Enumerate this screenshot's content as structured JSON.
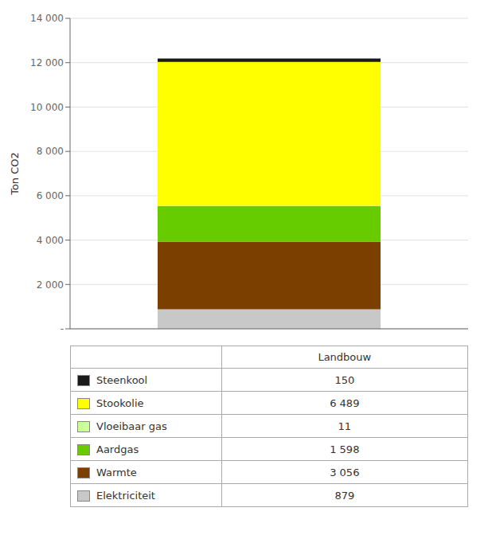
{
  "chart_data": {
    "type": "bar",
    "categories": [
      "Landbouw"
    ],
    "series": [
      {
        "name": "Steenkool",
        "color": "#1a1a1a",
        "values": [
          150
        ],
        "value_labels": [
          "150"
        ]
      },
      {
        "name": "Stookolie",
        "color": "#ffff00",
        "values": [
          6489
        ],
        "value_labels": [
          "6 489"
        ]
      },
      {
        "name": "Vloeibaar gas",
        "color": "#ccff99",
        "values": [
          11
        ],
        "value_labels": [
          "11"
        ]
      },
      {
        "name": "Aardgas",
        "color": "#66cc00",
        "values": [
          1598
        ],
        "value_labels": [
          "1 598"
        ]
      },
      {
        "name": "Warmte",
        "color": "#7b3f00",
        "values": [
          3056
        ],
        "value_labels": [
          "3 056"
        ]
      },
      {
        "name": "Elektriciteit",
        "color": "#c8c8c8",
        "values": [
          879
        ],
        "value_labels": [
          "879"
        ]
      }
    ],
    "ylabel": "Ton CO2",
    "ylim": [
      0,
      14000
    ],
    "yticks": [
      {
        "value": 0,
        "label": "-"
      },
      {
        "value": 2000,
        "label": "2 000"
      },
      {
        "value": 4000,
        "label": "4 000"
      },
      {
        "value": 6000,
        "label": "6 000"
      },
      {
        "value": 8000,
        "label": "8 000"
      },
      {
        "value": 10000,
        "label": "10 000"
      },
      {
        "value": 12000,
        "label": "12 000"
      },
      {
        "value": 14000,
        "label": "14 000"
      }
    ],
    "grid": true,
    "stacked": true,
    "tick_labels": "y"
  }
}
